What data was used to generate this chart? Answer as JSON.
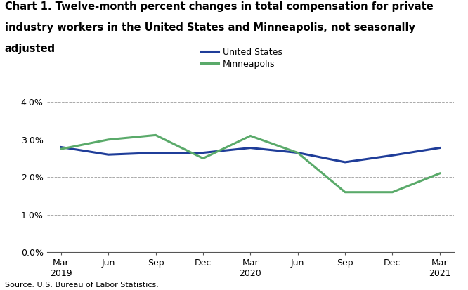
{
  "title_line1": "Chart 1. Twelve-month percent changes in total compensation for private",
  "title_line2": "industry workers in the United States and Minneapolis, not seasonally",
  "title_line3": "adjusted",
  "source": "Source: U.S. Bureau of Labor Statistics.",
  "x_labels": [
    "Mar\n2019",
    "Jun",
    "Sep",
    "Dec",
    "Mar\n2020",
    "Jun",
    "Sep",
    "Dec",
    "Mar\n2021"
  ],
  "us_values": [
    2.8,
    2.6,
    2.65,
    2.65,
    2.78,
    2.65,
    2.4,
    2.58,
    2.78
  ],
  "mpls_values": [
    2.75,
    3.0,
    3.12,
    2.5,
    3.1,
    2.65,
    1.6,
    1.6,
    2.1
  ],
  "us_color": "#1f3d99",
  "mpls_color": "#5aaa6a",
  "ylim_low": 0.0,
  "ylim_high": 4.4,
  "yticks": [
    0.0,
    1.0,
    2.0,
    3.0,
    4.0
  ],
  "ytick_labels": [
    "0.0%",
    "1.0%",
    "2.0%",
    "3.0%",
    "4.0%"
  ],
  "legend_labels": [
    "United States",
    "Minneapolis"
  ],
  "title_fontsize": 10.5,
  "tick_fontsize": 9,
  "source_fontsize": 8,
  "line_width": 2.2
}
